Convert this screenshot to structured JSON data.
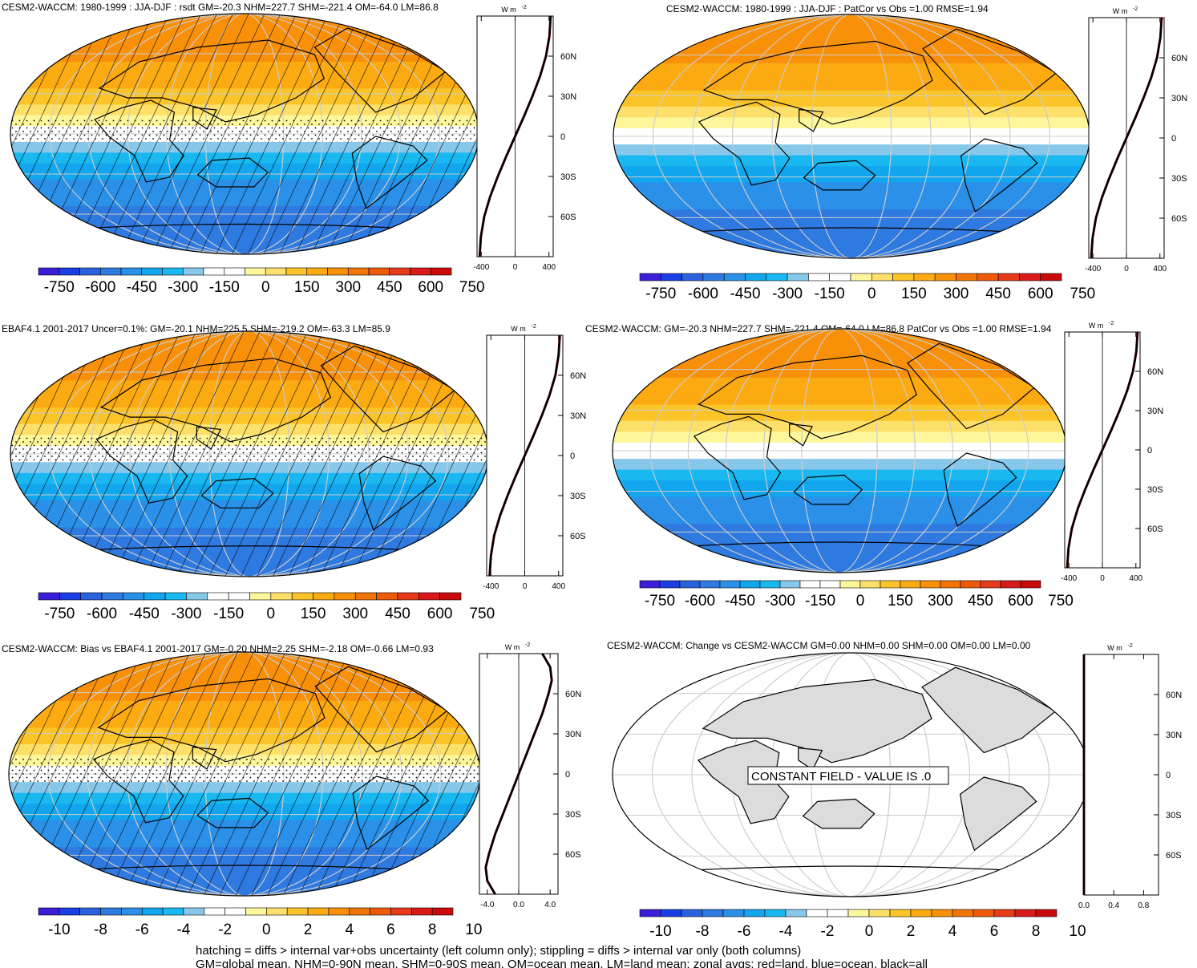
{
  "chart_data": [
    {
      "type": "heatmap",
      "title": "CESM2-WACCM: 1980-1999 : JJA-DJF : rsdt GM=-20.3 NHM=227.7 SHM=-221.4 OM=-64.0 LM=86.8",
      "colorbar_ticks": [
        "-750",
        "-600",
        "-450",
        "-300",
        "-150",
        "0",
        "150",
        "300",
        "450",
        "600",
        "750"
      ],
      "zonal_units": "W m",
      "zonal_units_exp": "-2",
      "zonal_xticks": [
        "-400",
        "0",
        "400"
      ],
      "zonal_xlim": [
        -450,
        450
      ],
      "lat_ticks": [
        "60N",
        "30N",
        "0",
        "30S",
        "60S"
      ],
      "zonal_mean": {
        "lat": [
          90,
          75,
          60,
          45,
          30,
          15,
          0,
          -15,
          -30,
          -45,
          -60,
          -75,
          -90
        ],
        "value": [
          420,
          405,
          365,
          295,
          205,
          105,
          0,
          -105,
          -205,
          -295,
          -365,
          -405,
          -420
        ]
      },
      "hatching": true,
      "stippling": true
    },
    {
      "type": "heatmap",
      "title": "CESM2-WACCM: 1980-1999 : JJA-DJF : PatCor vs Obs =1.00 RMSE=1.94",
      "colorbar_ticks": [
        "-750",
        "-600",
        "-450",
        "-300",
        "-150",
        "0",
        "150",
        "300",
        "450",
        "600",
        "750"
      ],
      "zonal_units": "W m",
      "zonal_units_exp": "-2",
      "zonal_xticks": [
        "-400",
        "0",
        "400"
      ],
      "zonal_xlim": [
        -450,
        450
      ],
      "lat_ticks": [
        "60N",
        "30N",
        "0",
        "30S",
        "60S"
      ],
      "zonal_mean": {
        "lat": [
          90,
          75,
          60,
          45,
          30,
          15,
          0,
          -15,
          -30,
          -45,
          -60,
          -75,
          -90
        ],
        "value": [
          420,
          405,
          365,
          295,
          205,
          105,
          0,
          -105,
          -205,
          -295,
          -365,
          -405,
          -420
        ]
      },
      "hatching": false,
      "stippling": false
    },
    {
      "type": "heatmap",
      "title": "EBAF4.1 2001-2017 Uncer=0.1%: GM=-20.1 NHM=225.5 SHM=-219.2 OM=-63.3 LM=85.9",
      "colorbar_ticks": [
        "-750",
        "-600",
        "-450",
        "-300",
        "-150",
        "0",
        "150",
        "300",
        "450",
        "600",
        "750"
      ],
      "zonal_units": "W m",
      "zonal_units_exp": "-2",
      "zonal_xticks": [
        "-400",
        "0",
        "400"
      ],
      "zonal_xlim": [
        -450,
        450
      ],
      "lat_ticks": [
        "60N",
        "30N",
        "0",
        "30S",
        "60S"
      ],
      "zonal_mean": {
        "lat": [
          90,
          75,
          60,
          45,
          30,
          15,
          0,
          -15,
          -30,
          -45,
          -60,
          -75,
          -90
        ],
        "value": [
          415,
          400,
          362,
          292,
          203,
          104,
          0,
          -104,
          -203,
          -292,
          -362,
          -400,
          -415
        ]
      },
      "hatching": true,
      "stippling": true
    },
    {
      "type": "heatmap",
      "title": "CESM2-WACCM: GM=-20.3 NHM=227.7 SHM=-221.4 OM=-64.0 LM=86.8 PatCor vs Obs =1.00 RMSE=1.94",
      "colorbar_ticks": [
        "-750",
        "-600",
        "-450",
        "-300",
        "-150",
        "0",
        "150",
        "300",
        "450",
        "600",
        "750"
      ],
      "zonal_units": "W m",
      "zonal_units_exp": "-2",
      "zonal_xticks": [
        "-400",
        "0",
        "400"
      ],
      "zonal_xlim": [
        -450,
        450
      ],
      "lat_ticks": [
        "60N",
        "30N",
        "0",
        "30S",
        "60S"
      ],
      "zonal_mean": {
        "lat": [
          90,
          75,
          60,
          45,
          30,
          15,
          0,
          -15,
          -30,
          -45,
          -60,
          -75,
          -90
        ],
        "value": [
          420,
          405,
          365,
          295,
          205,
          105,
          0,
          -105,
          -205,
          -295,
          -365,
          -405,
          -420
        ]
      },
      "hatching": false,
      "stippling": false
    },
    {
      "type": "heatmap",
      "title": "CESM2-WACCM: Bias vs EBAF4.1 2001-2017 GM=-0.20 NHM=2.25 SHM=-2.18 OM=-0.66 LM=0.93",
      "colorbar_ticks": [
        "-10",
        "-8",
        "-6",
        "-4",
        "-2",
        "0",
        "2",
        "4",
        "6",
        "8",
        "10"
      ],
      "zonal_units": "W m",
      "zonal_units_exp": "-2",
      "zonal_xticks": [
        "-4.0",
        "0.0",
        "4.0"
      ],
      "zonal_xlim": [
        -5,
        5
      ],
      "lat_ticks": [
        "60N",
        "30N",
        "0",
        "30S",
        "60S"
      ],
      "zonal_mean": {
        "lat": [
          90,
          80,
          70,
          60,
          45,
          30,
          15,
          0,
          -15,
          -30,
          -45,
          -60,
          -70,
          -80,
          -90
        ],
        "value": [
          3.0,
          4.0,
          4.2,
          3.8,
          3.0,
          2.0,
          1.0,
          0,
          -1.0,
          -2.0,
          -3.0,
          -3.8,
          -4.2,
          -4.0,
          -3.0
        ]
      },
      "hatching": true,
      "stippling": true
    },
    {
      "type": "heatmap",
      "title": "CESM2-WACCM: Change vs CESM2-WACCM GM=0.00 NHM=0.00 SHM=0.00 OM=0.00 LM=0.00",
      "colorbar_ticks": [
        "-10",
        "-8",
        "-6",
        "-4",
        "-2",
        "0",
        "2",
        "4",
        "6",
        "8",
        "10"
      ],
      "zonal_units": "W m",
      "zonal_units_exp": "-2",
      "zonal_xticks": [
        "0.0",
        "0.4",
        "0.8"
      ],
      "zonal_xlim": [
        0,
        1
      ],
      "lat_ticks": [
        "60N",
        "30N",
        "0",
        "30S",
        "60S"
      ],
      "zonal_mean": {
        "lat": [
          90,
          -90
        ],
        "value": [
          0,
          0
        ]
      },
      "hatching": false,
      "stippling": false,
      "annotation": "CONSTANT FIELD - VALUE IS .0"
    }
  ],
  "palette": [
    "#3a1fd8",
    "#1a3ee4",
    "#2a62de",
    "#2f7ae0",
    "#2a90e8",
    "#12a6ee",
    "#1ab8f0",
    "#87c8ea",
    "#ffffff",
    "#ffffff",
    "#fdf69a",
    "#fde06a",
    "#fbc428",
    "#fbaa12",
    "#f8900a",
    "#f07406",
    "#ee5a0a",
    "#e63a1a",
    "#d81a1a",
    "#c80a0a"
  ],
  "land_color": "#dcdcdc",
  "footer": {
    "line1": "hatching = diffs > internal var+obs uncertainty (left column only); stippling = diffs > internal var only (both columns)",
    "line2": "GM=global mean, NHM=0-90N mean, SHM=0-90S mean, OM=ocean mean, LM=land mean; zonal avgs: red=land, blue=ocean, black=all"
  }
}
